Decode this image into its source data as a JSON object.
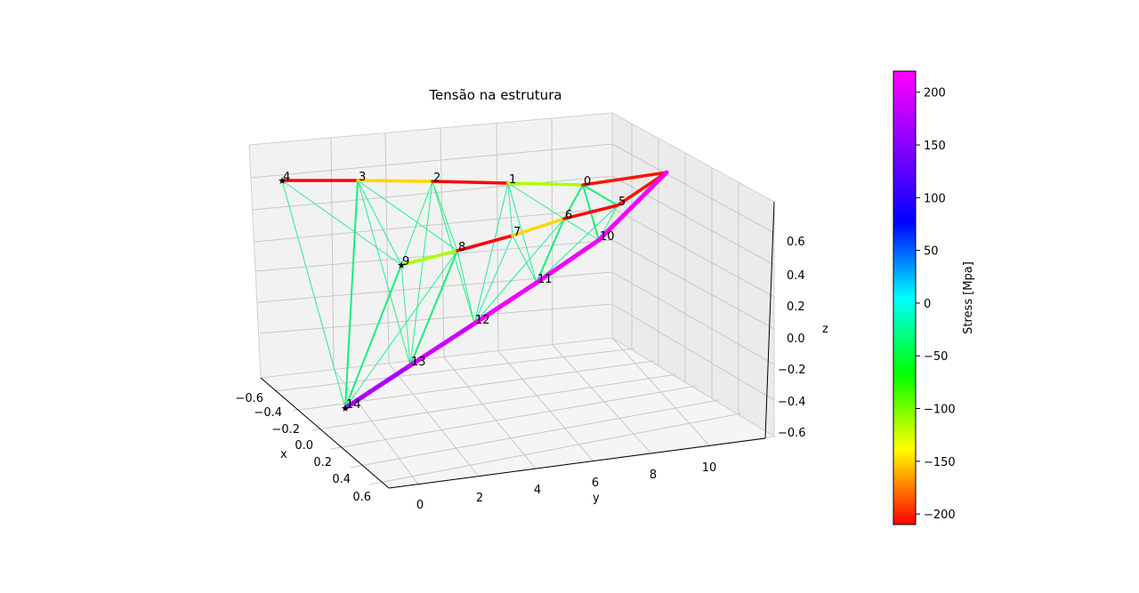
{
  "chart_data": {
    "type": "3d-line",
    "title": "Tensão na estrutura",
    "xlabel": "x",
    "ylabel": "y",
    "zlabel": "z",
    "x_ticks": [
      "−0.6",
      "−0.4",
      "−0.2",
      "0.0",
      "0.2",
      "0.4",
      "0.6"
    ],
    "y_ticks": [
      "0",
      "2",
      "4",
      "6",
      "8",
      "10"
    ],
    "z_ticks": [
      "−0.6",
      "−0.4",
      "−0.2",
      "0.0",
      "0.2",
      "0.4",
      "0.6"
    ],
    "colorbar": {
      "label": "Stress [Mpa]",
      "range": [
        -210,
        220
      ],
      "ticks": [
        "200",
        "150",
        "100",
        "50",
        "0",
        "−50",
        "−100",
        "−150",
        "−200"
      ]
    },
    "node_labels": [
      "0",
      "1",
      "2",
      "3",
      "4",
      "5",
      "6",
      "7",
      "8",
      "9",
      "10",
      "11",
      "12",
      "13",
      "14"
    ],
    "members": [
      {
        "from": "4",
        "to": "3",
        "stress": -210
      },
      {
        "from": "3",
        "to": "2",
        "stress": -150
      },
      {
        "from": "2",
        "to": "1",
        "stress": -210
      },
      {
        "from": "1",
        "to": "0",
        "stress": -115
      },
      {
        "from": "0",
        "to": "tip",
        "stress": -205
      },
      {
        "from": "9",
        "to": "8",
        "stress": -115
      },
      {
        "from": "8",
        "to": "7",
        "stress": -210
      },
      {
        "from": "7",
        "to": "6",
        "stress": -150
      },
      {
        "from": "6",
        "to": "5",
        "stress": -210
      },
      {
        "from": "5",
        "to": "tip",
        "stress": -205
      },
      {
        "from": "14",
        "to": "13",
        "stress": 170
      },
      {
        "from": "13",
        "to": "12",
        "stress": 190
      },
      {
        "from": "12",
        "to": "11",
        "stress": 212
      },
      {
        "from": "11",
        "to": "10",
        "stress": 212
      },
      {
        "from": "10",
        "to": "tip",
        "stress": 212
      }
    ]
  }
}
